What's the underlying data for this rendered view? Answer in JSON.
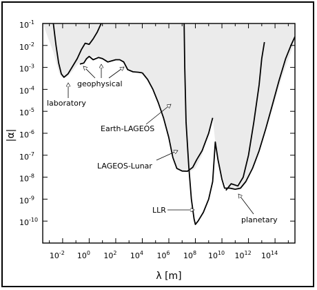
{
  "chart_data": {
    "type": "line",
    "title": "",
    "xlabel": "λ [m]",
    "ylabel": "|α|",
    "xscale": "log",
    "yscale": "log",
    "xlim_log10": [
      -3.5,
      15.5
    ],
    "ylim_log10": [
      -11,
      -1
    ],
    "xticks": [
      {
        "m": "10",
        "e": "-2",
        "v": -2
      },
      {
        "m": "10",
        "e": "0",
        "v": 0
      },
      {
        "m": "10",
        "e": "2",
        "v": 2
      },
      {
        "m": "10",
        "e": "4",
        "v": 4
      },
      {
        "m": "10",
        "e": "6",
        "v": 6
      },
      {
        "m": "10",
        "e": "8",
        "v": 8
      },
      {
        "m": "10",
        "e": "10",
        "v": 10
      },
      {
        "m": "10",
        "e": "12",
        "v": 12
      },
      {
        "m": "10",
        "e": "14",
        "v": 14
      }
    ],
    "yticks": [
      {
        "m": "10",
        "e": "-1",
        "v": -1
      },
      {
        "m": "10",
        "e": "-2",
        "v": -2
      },
      {
        "m": "10",
        "e": "-3",
        "v": -3
      },
      {
        "m": "10",
        "e": "-4",
        "v": -4
      },
      {
        "m": "10",
        "e": "-5",
        "v": -5
      },
      {
        "m": "10",
        "e": "-6",
        "v": -6
      },
      {
        "m": "10",
        "e": "-7",
        "v": -7
      },
      {
        "m": "10",
        "e": "-8",
        "v": -8
      },
      {
        "m": "10",
        "e": "-9",
        "v": -9
      },
      {
        "m": "10",
        "e": "-10",
        "v": -10
      }
    ],
    "shading_color": "#ebebeb",
    "curve_color": "#000000",
    "excluded_region_log10": [
      [
        -3.5,
        -1
      ],
      [
        -2.7,
        -2.3
      ],
      [
        -2.3,
        -3.2
      ],
      [
        -2.1,
        -3.45
      ],
      [
        -1.7,
        -3.45
      ],
      [
        -1.3,
        -3.2
      ],
      [
        -0.8,
        -2.8
      ],
      [
        -0.4,
        -2.75
      ],
      [
        0.1,
        -2.55
      ],
      [
        0.5,
        -2.5
      ],
      [
        1.0,
        -2.65
      ],
      [
        1.5,
        -2.7
      ],
      [
        2.0,
        -2.65
      ],
      [
        2.5,
        -2.7
      ],
      [
        2.8,
        -3.05
      ],
      [
        3.2,
        -3.2
      ],
      [
        4.0,
        -3.25
      ],
      [
        4.5,
        -3.6
      ],
      [
        5.0,
        -4.3
      ],
      [
        5.5,
        -5.2
      ],
      [
        6.0,
        -6.3
      ],
      [
        6.3,
        -7.2
      ],
      [
        6.6,
        -7.6
      ],
      [
        7.0,
        -7.75
      ],
      [
        7.6,
        -7.75
      ],
      [
        8.0,
        -7.6
      ],
      [
        8.5,
        -7.0
      ],
      [
        9.0,
        -6.0
      ],
      [
        9.3,
        -5.3
      ],
      [
        9.5,
        -6.4
      ],
      [
        9.8,
        -7.5
      ],
      [
        10.2,
        -8.3
      ],
      [
        10.6,
        -8.5
      ],
      [
        11.0,
        -8.5
      ],
      [
        11.3,
        -8.6
      ],
      [
        11.7,
        -8.3
      ],
      [
        12.5,
        -7.4
      ],
      [
        13.5,
        -5.5
      ],
      [
        14.5,
        -3.5
      ],
      [
        15.5,
        -1.8
      ],
      [
        15.5,
        -1
      ]
    ],
    "series": [
      {
        "points": [
          [
            -2.7,
            -1.0
          ],
          [
            -2.5,
            -2.0
          ],
          [
            -2.3,
            -2.8
          ],
          [
            -2.1,
            -3.3
          ],
          [
            -1.9,
            -3.45
          ],
          [
            -1.6,
            -3.3
          ],
          [
            -1.3,
            -3.0
          ],
          [
            -0.9,
            -2.6
          ],
          [
            -0.6,
            -2.2
          ],
          [
            -0.3,
            -1.9
          ],
          [
            0,
            -1.95
          ],
          [
            0.3,
            -1.7
          ],
          [
            0.6,
            -1.4
          ],
          [
            0.9,
            -1.0
          ]
        ]
      },
      {
        "points": [
          [
            -0.7,
            -2.85
          ],
          [
            -0.4,
            -2.8
          ],
          [
            -0.2,
            -2.6
          ],
          [
            0.0,
            -2.5
          ],
          [
            0.3,
            -2.65
          ],
          [
            0.7,
            -2.55
          ],
          [
            1.0,
            -2.6
          ],
          [
            1.4,
            -2.75
          ],
          [
            1.7,
            -2.7
          ],
          [
            2.0,
            -2.65
          ],
          [
            2.3,
            -2.65
          ],
          [
            2.6,
            -2.75
          ],
          [
            2.9,
            -3.1
          ],
          [
            3.3,
            -3.2
          ],
          [
            3.7,
            -3.22
          ],
          [
            4.0,
            -3.25
          ]
        ]
      },
      {
        "points": [
          [
            4.0,
            -3.25
          ],
          [
            4.4,
            -3.55
          ],
          [
            4.8,
            -4.0
          ],
          [
            5.2,
            -4.6
          ],
          [
            5.6,
            -5.3
          ],
          [
            6.0,
            -6.2
          ],
          [
            6.3,
            -7.1
          ],
          [
            6.6,
            -7.6
          ],
          [
            7.0,
            -7.72
          ],
          [
            7.4,
            -7.73
          ],
          [
            7.8,
            -7.55
          ],
          [
            8.1,
            -7.2
          ],
          [
            8.5,
            -6.8
          ],
          [
            9.0,
            -6.0
          ],
          [
            9.3,
            -5.3
          ]
        ]
      },
      {
        "points": [
          [
            7.15,
            -1.0
          ],
          [
            7.2,
            -3.0
          ],
          [
            7.3,
            -5.5
          ],
          [
            7.5,
            -7.5
          ],
          [
            7.7,
            -9.0
          ],
          [
            7.9,
            -9.9
          ],
          [
            8.0,
            -10.15
          ],
          [
            8.2,
            -10.0
          ],
          [
            8.6,
            -9.6
          ],
          [
            9.0,
            -9.0
          ],
          [
            9.3,
            -8.2
          ],
          [
            9.5,
            -6.4
          ],
          [
            9.7,
            -7.2
          ],
          [
            10.0,
            -8.1
          ],
          [
            10.2,
            -8.5
          ],
          [
            10.6,
            -8.5
          ],
          [
            11.0,
            -8.55
          ],
          [
            11.4,
            -8.5
          ],
          [
            11.8,
            -8.2
          ],
          [
            12.3,
            -7.6
          ],
          [
            12.8,
            -6.8
          ],
          [
            13.3,
            -5.8
          ],
          [
            13.8,
            -4.7
          ],
          [
            14.3,
            -3.6
          ],
          [
            14.8,
            -2.6
          ],
          [
            15.2,
            -2.0
          ],
          [
            15.5,
            -1.6
          ]
        ]
      },
      {
        "points": [
          [
            10.3,
            -8.6
          ],
          [
            10.7,
            -8.3
          ],
          [
            11.2,
            -8.4
          ],
          [
            11.6,
            -8.0
          ],
          [
            12.0,
            -7.0
          ],
          [
            12.4,
            -5.5
          ],
          [
            12.8,
            -3.8
          ],
          [
            13.0,
            -2.6
          ],
          [
            13.2,
            -1.85
          ]
        ]
      }
    ],
    "annotations": [
      {
        "text": "laboratory"
      },
      {
        "text": "geophysical"
      },
      {
        "text": "Earth-LAGEOS"
      },
      {
        "text": "LAGEOS-Lunar"
      },
      {
        "text": "LLR"
      },
      {
        "text": "planetary"
      }
    ]
  }
}
